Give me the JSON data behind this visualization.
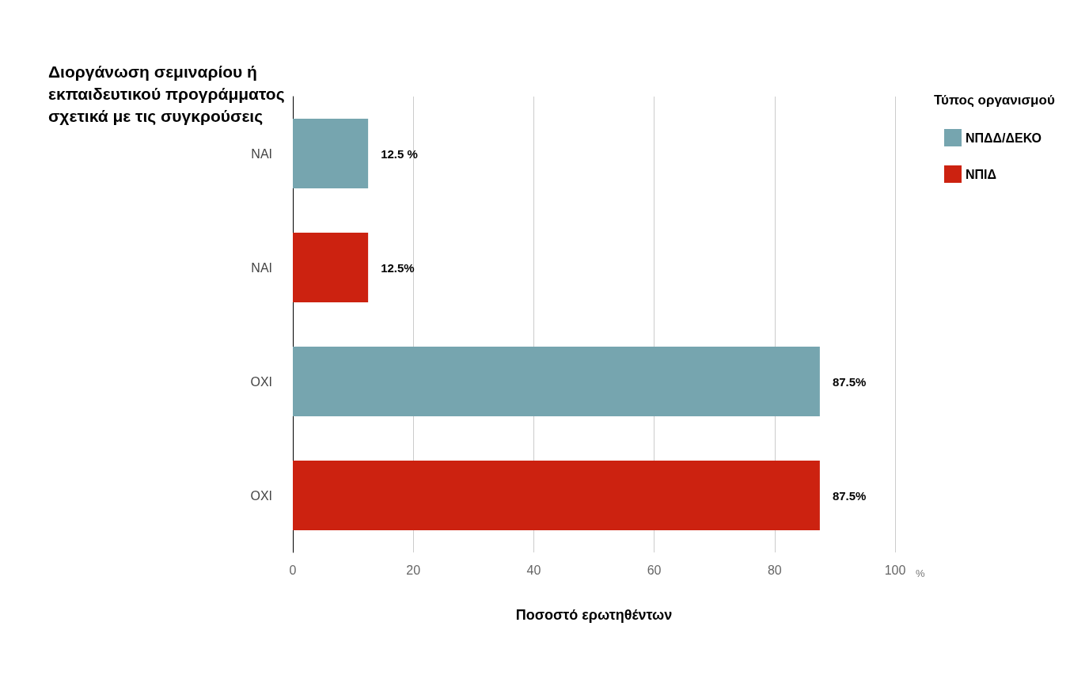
{
  "chart_data": {
    "type": "bar",
    "orientation": "horizontal",
    "ylabel": "Διοργάνωση σεμιναρίου ή εκπαιδευτικού προγράμματος σχετικά με τις συγκρούσεις",
    "xlabel": "Ποσοστό ερωτηθέντων",
    "legend_title": "Τύπος οργανισμού",
    "categories": [
      "ΝΑΙ",
      "ΝΑΙ",
      "ΟΧΙ",
      "ΟΧΙ"
    ],
    "series": [
      {
        "name": "ΝΠΔΔ/ΔΕΚΟ",
        "color": "#76a5af",
        "values": [
          12.5,
          null,
          87.5,
          null
        ],
        "value_labels": [
          "12.5 %",
          null,
          "87.5%",
          null
        ]
      },
      {
        "name": "ΝΠΙΔ",
        "color": "#cc2210",
        "values": [
          null,
          12.5,
          null,
          87.5
        ],
        "value_labels": [
          null,
          "12.5%",
          null,
          "87.5%"
        ]
      }
    ],
    "xlim": [
      0,
      100
    ],
    "xticks": [
      0,
      20,
      40,
      60,
      80,
      100
    ],
    "grid": "x",
    "legend": "top right",
    "annotations": [
      "%"
    ]
  }
}
